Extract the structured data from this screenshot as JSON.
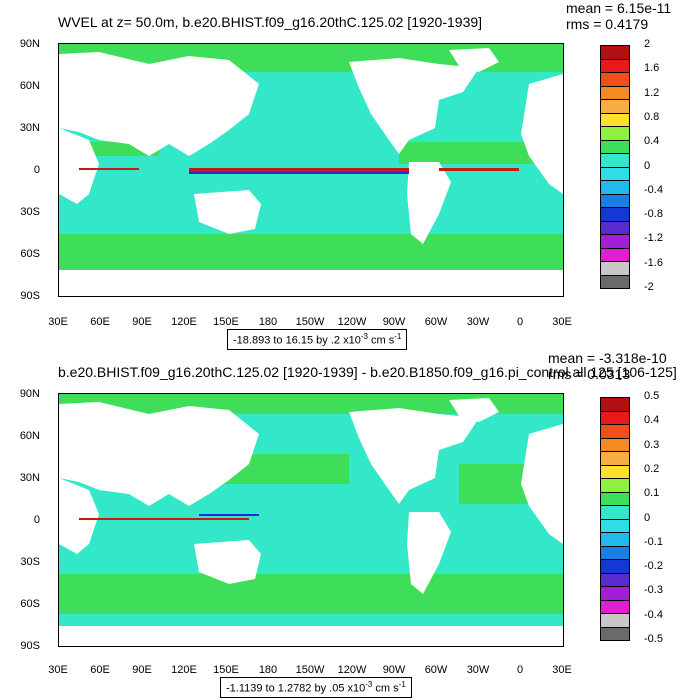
{
  "colors": {
    "ocean_base": "#33e8c8",
    "band_green": "#3fde5a",
    "land": "#ffffff",
    "pos_strong": "#c81818",
    "neg_strong": "#1a2fd8"
  },
  "lat_ticks": [
    "90N",
    "60N",
    "30N",
    "0",
    "30S",
    "60S",
    "90S"
  ],
  "lon_ticks": [
    "30E",
    "60E",
    "90E",
    "120E",
    "150E",
    "180",
    "150W",
    "120W",
    "90W",
    "60W",
    "30W",
    "0",
    "30E"
  ],
  "panels": [
    {
      "title": "WVEL at z=  50.0m, b.e20.BHIST.f09_g16.20thC.125.02 [1920-1939]",
      "mean": "mean = 6.15e-11",
      "rms": "rms = 0.4179",
      "range_value": "-18.893 to 16.15 by .2 x10",
      "range_exp": "-3",
      "range_unit": " cm s",
      "range_unit_exp": "-1",
      "legend": {
        "labels": [
          "2",
          "1.6",
          "1.2",
          "0.8",
          "0.4",
          "0",
          "-0.4",
          "-0.8",
          "-1.2",
          "-1.6",
          "-2"
        ],
        "colors": [
          "#b01010",
          "#e8181c",
          "#f24d1a",
          "#f58a22",
          "#f7ad45",
          "#fbe12c",
          "#8ff040",
          "#3fde5a",
          "#33e8c8",
          "#2fdde8",
          "#22b9ef",
          "#1780e0",
          "#1238d6",
          "#5a2ad0",
          "#a31ed6",
          "#e020d0",
          "#c8c8c8",
          "#6a6a6a"
        ]
      }
    },
    {
      "title": "b.e20.BHIST.f09_g16.20thC.125.02 [1920-1939] - b.e20.B1850.f09_g16.pi_control.all.125 [106-125]",
      "mean": "mean = -3.318e-10",
      "rms": "rms = 0.0313",
      "range_value": "-1.1139 to 1.2782 by .05 x10",
      "range_exp": "-3",
      "range_unit": " cm s",
      "range_unit_exp": "-1",
      "legend": {
        "labels": [
          "0.5",
          "0.4",
          "0.3",
          "0.2",
          "0.1",
          "0",
          "-0.1",
          "-0.2",
          "-0.3",
          "-0.4",
          "-0.5"
        ],
        "colors": [
          "#b01010",
          "#e8181c",
          "#f24d1a",
          "#f58a22",
          "#f7ad45",
          "#fbe12c",
          "#8ff040",
          "#3fde5a",
          "#33e8c8",
          "#2fdde8",
          "#22b9ef",
          "#1780e0",
          "#1238d6",
          "#5a2ad0",
          "#a31ed6",
          "#e020d0",
          "#c8c8c8",
          "#6a6a6a"
        ]
      }
    }
  ]
}
